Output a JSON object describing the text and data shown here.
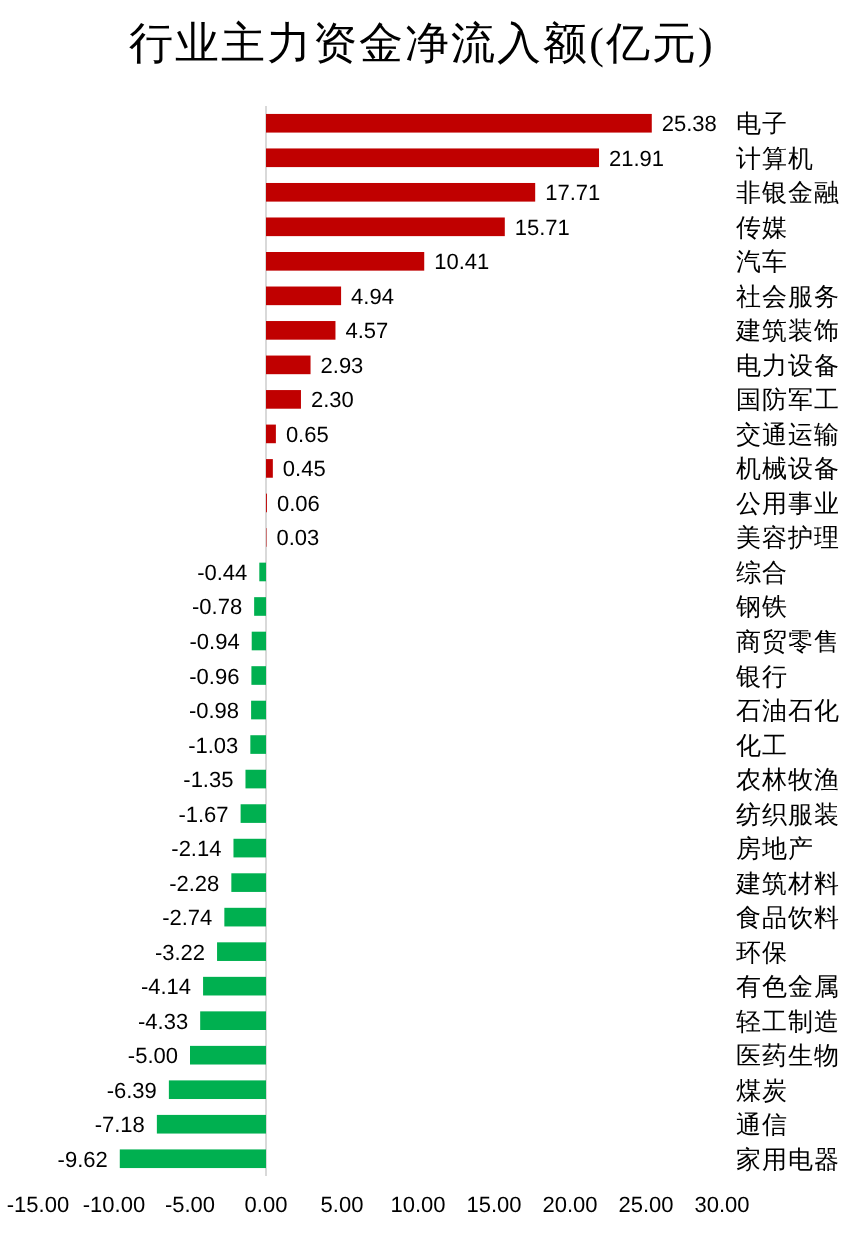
{
  "chart_data": {
    "type": "bar",
    "orientation": "horizontal",
    "title": "行业主力资金净流入额(亿元)",
    "categories": [
      "电子",
      "计算机",
      "非银金融",
      "传媒",
      "汽车",
      "社会服务",
      "建筑装饰",
      "电力设备",
      "国防军工",
      "交通运输",
      "机械设备",
      "公用事业",
      "美容护理",
      "综合",
      "钢铁",
      "商贸零售",
      "银行",
      "石油石化",
      "化工",
      "农林牧渔",
      "纺织服装",
      "房地产",
      "建筑材料",
      "食品饮料",
      "环保",
      "有色金属",
      "轻工制造",
      "医药生物",
      "煤炭",
      "通信",
      "家用电器"
    ],
    "values": [
      25.38,
      21.91,
      17.71,
      15.71,
      10.41,
      4.94,
      4.57,
      2.93,
      2.3,
      0.65,
      0.45,
      0.06,
      0.03,
      -0.44,
      -0.78,
      -0.94,
      -0.96,
      -0.98,
      -1.03,
      -1.35,
      -1.67,
      -2.14,
      -2.28,
      -2.74,
      -3.22,
      -4.14,
      -4.33,
      -5.0,
      -6.39,
      -7.18,
      -9.62
    ],
    "value_labels": [
      "25.38",
      "21.91",
      "17.71",
      "15.71",
      "10.41",
      "4.94",
      "4.57",
      "2.93",
      "2.30",
      "0.65",
      "0.45",
      "0.06",
      "0.03",
      "-0.44",
      "-0.78",
      "-0.94",
      "-0.96",
      "-0.98",
      "-1.03",
      "-1.35",
      "-1.67",
      "-2.14",
      "-2.28",
      "-2.74",
      "-3.22",
      "-4.14",
      "-4.33",
      "-5.00",
      "-6.39",
      "-7.18",
      "-9.62"
    ],
    "colors": [
      "#c00000",
      "#c00000",
      "#c00000",
      "#c00000",
      "#c00000",
      "#c00000",
      "#c00000",
      "#c00000",
      "#c00000",
      "#c00000",
      "#c00000",
      "#c00000",
      "#c00000",
      "#00b050",
      "#00b050",
      "#00b050",
      "#00b050",
      "#00b050",
      "#00b050",
      "#00b050",
      "#00b050",
      "#00b050",
      "#00b050",
      "#00b050",
      "#00b050",
      "#00b050",
      "#00b050",
      "#00b050",
      "#00b050",
      "#00b050",
      "#00b050"
    ],
    "xlim": [
      -15,
      30
    ],
    "xticks": [
      {
        "value": -15,
        "label": "-15.00"
      },
      {
        "value": -10,
        "label": "-10.00"
      },
      {
        "value": -5,
        "label": "-5.00"
      },
      {
        "value": 0,
        "label": "0.00"
      },
      {
        "value": 5,
        "label": "5.00"
      },
      {
        "value": 10,
        "label": "10.00"
      },
      {
        "value": 15,
        "label": "15.00"
      },
      {
        "value": 20,
        "label": "20.00"
      },
      {
        "value": 25,
        "label": "25.00"
      },
      {
        "value": 30,
        "label": "30.00"
      }
    ]
  }
}
